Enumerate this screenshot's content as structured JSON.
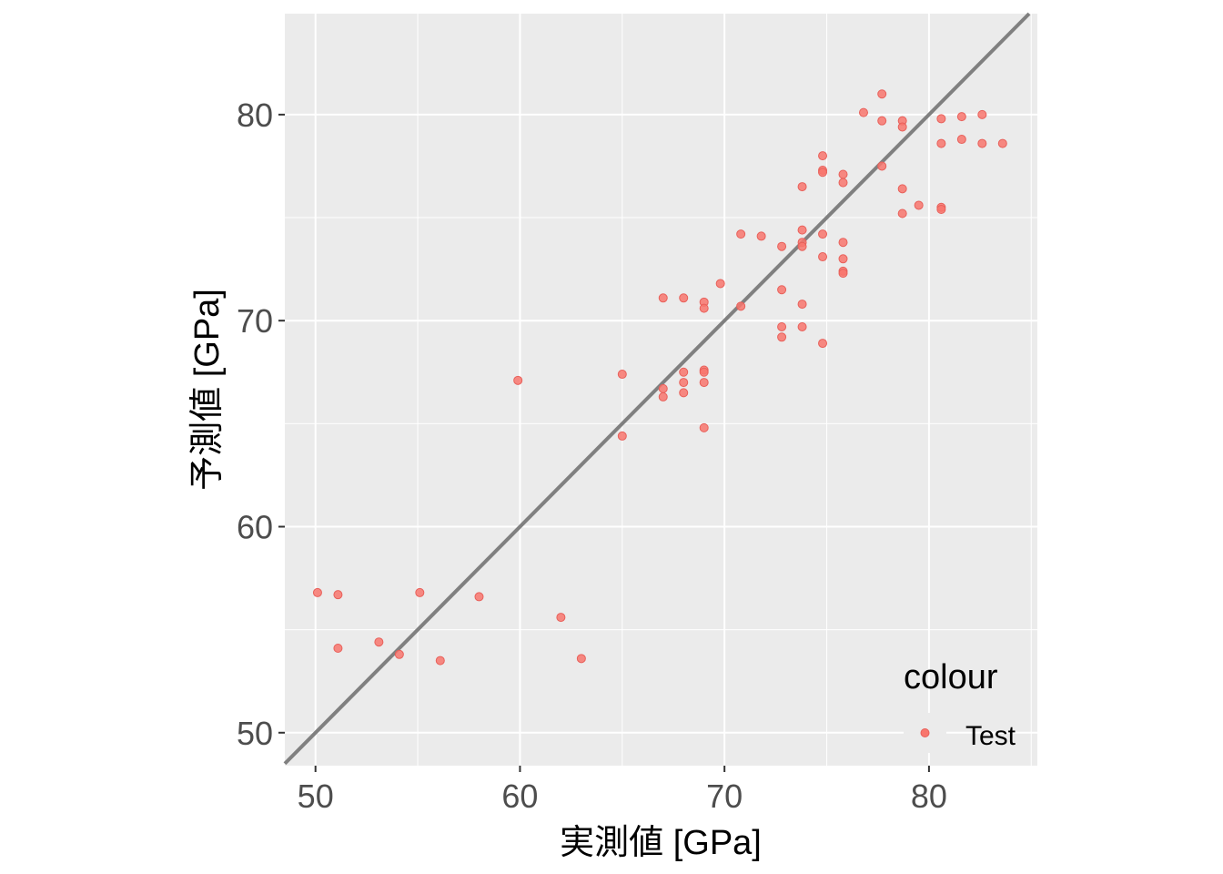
{
  "chart_data": {
    "type": "scatter",
    "xlabel": "実測値 [GPa]",
    "ylabel": "予測値 [GPa]",
    "xlim": [
      48.5,
      85.3
    ],
    "ylim": [
      48.4,
      84.9
    ],
    "x_ticks": [
      50,
      60,
      70,
      80
    ],
    "y_ticks": [
      50,
      60,
      70,
      80
    ],
    "x_tick_labels": [
      "50",
      "60",
      "70",
      "80"
    ],
    "y_tick_labels": [
      "50",
      "60",
      "70",
      "80"
    ],
    "grid": true,
    "reference_line": {
      "type": "y=x",
      "color": "#808080"
    },
    "legend": {
      "title": "colour",
      "position": "bottom-right",
      "entries": [
        "Test"
      ]
    },
    "series": [
      {
        "name": "Test",
        "color": "#F8766D",
        "x": [
          50.1,
          51.1,
          51.1,
          53.1,
          54.1,
          55.1,
          56.1,
          58.0,
          59.9,
          62.0,
          63.0,
          65.0,
          65.0,
          67.0,
          67.0,
          67.0,
          68.0,
          68.0,
          68.0,
          68.0,
          69.0,
          69.0,
          69.0,
          69.0,
          69.0,
          69.0,
          69.8,
          70.8,
          70.8,
          71.8,
          72.8,
          72.8,
          72.8,
          72.8,
          73.8,
          73.8,
          73.8,
          73.8,
          73.8,
          73.8,
          74.8,
          74.8,
          74.8,
          74.8,
          74.8,
          74.8,
          75.8,
          75.8,
          75.8,
          75.8,
          75.8,
          75.8,
          76.8,
          77.7,
          77.7,
          77.7,
          78.7,
          78.7,
          78.7,
          78.7,
          79.5,
          80.6,
          80.6,
          80.6,
          80.6,
          81.6,
          81.6,
          82.6,
          82.6,
          83.6
        ],
        "y": [
          56.8,
          56.7,
          54.1,
          54.4,
          53.8,
          56.8,
          53.5,
          56.6,
          67.1,
          55.6,
          53.6,
          67.4,
          64.4,
          71.1,
          66.7,
          66.3,
          71.1,
          67.5,
          67.0,
          66.5,
          70.9,
          70.6,
          67.6,
          67.5,
          67.0,
          64.8,
          71.8,
          74.2,
          70.7,
          74.1,
          73.6,
          71.5,
          69.7,
          69.2,
          76.5,
          74.4,
          73.8,
          73.6,
          70.8,
          69.7,
          78.0,
          77.3,
          77.2,
          74.2,
          73.1,
          68.9,
          77.1,
          76.7,
          73.8,
          73.0,
          72.4,
          72.3,
          80.1,
          81.0,
          79.7,
          77.5,
          79.7,
          79.4,
          76.4,
          75.2,
          75.6,
          79.8,
          78.6,
          75.5,
          75.4,
          79.9,
          78.8,
          80.0,
          78.6,
          78.6
        ]
      }
    ]
  }
}
